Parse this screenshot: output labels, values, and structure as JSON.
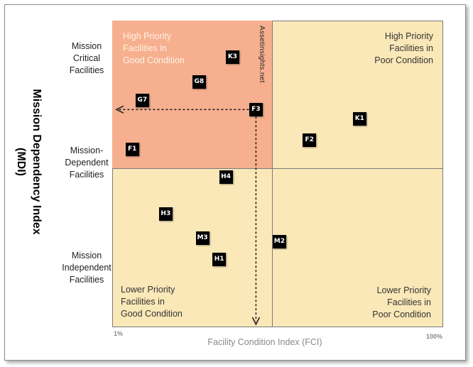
{
  "chart_data": {
    "type": "scatter",
    "xlabel": "Facility Condition Index (FCI)",
    "ylabel": "Mission Dependency Index\n(MDI)",
    "x_tick_min": "1%",
    "x_tick_max": "100%",
    "xlim": [
      1,
      100
    ],
    "ylim": [
      0,
      100
    ],
    "x_threshold": 49,
    "y_threshold": 52,
    "y_categories": [
      {
        "label": "Mission\nCritical\nFacilities",
        "y": 88
      },
      {
        "label": "Mission-\nDependent\nFacilities",
        "y": 57
      },
      {
        "label": "Mission\nIndependent\nFacilities",
        "y": 20
      }
    ],
    "quadrants": [
      {
        "label": "High Priority\nFacilities in\nGood Condition",
        "position": "top-left",
        "highlight": true
      },
      {
        "label": "High Priority\nFacilities in\nPoor Condition",
        "position": "top-right"
      },
      {
        "label": "Lower Priority\nFacilities in\nGood Condition",
        "position": "bottom-left"
      },
      {
        "label": "Lower Priority\nFacilities in\nPoor Condition",
        "position": "bottom-right"
      }
    ],
    "points": [
      {
        "label": "K3",
        "x": 37,
        "y": 88
      },
      {
        "label": "G8",
        "x": 27,
        "y": 80
      },
      {
        "label": "G7",
        "x": 10,
        "y": 74
      },
      {
        "label": "F3",
        "x": 44,
        "y": 71
      },
      {
        "label": "F1",
        "x": 7,
        "y": 58
      },
      {
        "label": "K1",
        "x": 75,
        "y": 68
      },
      {
        "label": "F2",
        "x": 60,
        "y": 61
      },
      {
        "label": "H4",
        "x": 35,
        "y": 49
      },
      {
        "label": "H3",
        "x": 17,
        "y": 37
      },
      {
        "label": "M3",
        "x": 28,
        "y": 29
      },
      {
        "label": "M2",
        "x": 51,
        "y": 28
      },
      {
        "label": "H1",
        "x": 33,
        "y": 22
      }
    ],
    "highlight_point": "F3",
    "watermark": "Assetinsights.net",
    "grid": false
  }
}
